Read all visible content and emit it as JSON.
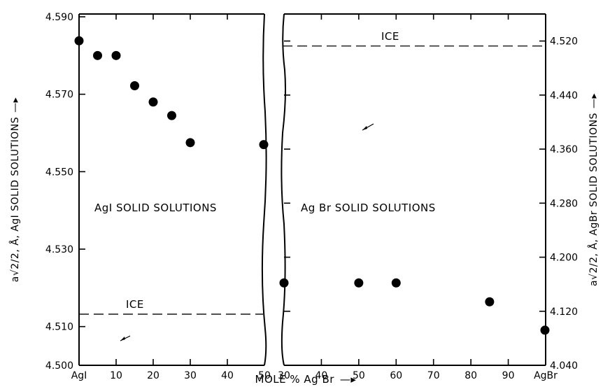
{
  "chart_data": [
    {
      "type": "scatter",
      "panel": "left",
      "xlabel": "MOLE % AgBr",
      "ylabel": "a√2/2, Å, AgI SOLID SOLUTIONS",
      "ylabel_arrow": "—▸",
      "xlim": [
        0,
        50
      ],
      "ylim": [
        4.5,
        4.59
      ],
      "x_ticks": [
        0,
        10,
        20,
        30,
        40,
        50
      ],
      "x_tick_labels": [
        "AgI",
        "10",
        "20",
        "30",
        "40",
        "50"
      ],
      "y_ticks": [
        4.5,
        4.51,
        4.53,
        4.55,
        4.57,
        4.59
      ],
      "y_tick_labels": [
        "4.500",
        "4.510",
        "4.530",
        "4.550",
        "4.570",
        "4.590"
      ],
      "points": [
        {
          "x": 0,
          "y": 4.5838
        },
        {
          "x": 5,
          "y": 4.58
        },
        {
          "x": 10,
          "y": 4.58
        },
        {
          "x": 15,
          "y": 4.5722
        },
        {
          "x": 20,
          "y": 4.568
        },
        {
          "x": 25,
          "y": 4.5645
        },
        {
          "x": 30,
          "y": 4.5575
        },
        {
          "x": 50,
          "y": 4.557
        }
      ],
      "ice": {
        "label": "ICE",
        "y": 4.5132
      },
      "annotation": "AgI SOLID SOLUTIONS",
      "grid": false
    },
    {
      "type": "scatter",
      "panel": "right",
      "xlabel": "MOLE % AgBr",
      "ylabel": "a√2/2, Å, AgBr SOLID SOLUTIONS",
      "ylabel_arrow": "—▸",
      "xlim": [
        30,
        100
      ],
      "ylim": [
        4.04,
        4.56
      ],
      "x_ticks": [
        30,
        40,
        50,
        60,
        70,
        80,
        90,
        100
      ],
      "x_tick_labels": [
        "30",
        "40",
        "50",
        "60",
        "70",
        "80",
        "90",
        "AgBr"
      ],
      "y_ticks": [
        4.04,
        4.12,
        4.2,
        4.28,
        4.36,
        4.44,
        4.52
      ],
      "y_tick_labels": [
        "4.040",
        "4.120",
        "4.200",
        "4.280",
        "4.360",
        "4.440",
        "4.520"
      ],
      "points": [
        {
          "x": 30,
          "y": 4.162
        },
        {
          "x": 50,
          "y": 4.162
        },
        {
          "x": 60,
          "y": 4.162
        },
        {
          "x": 85,
          "y": 4.134
        },
        {
          "x": 100,
          "y": 4.092
        }
      ],
      "ice": {
        "label": "ICE",
        "y": 4.5126
      },
      "annotation": "Ag Br SOLID SOLUTIONS",
      "grid": false
    }
  ],
  "x_axis_title": "MOLE % Ag Br",
  "x_axis_arrow": "—▸"
}
